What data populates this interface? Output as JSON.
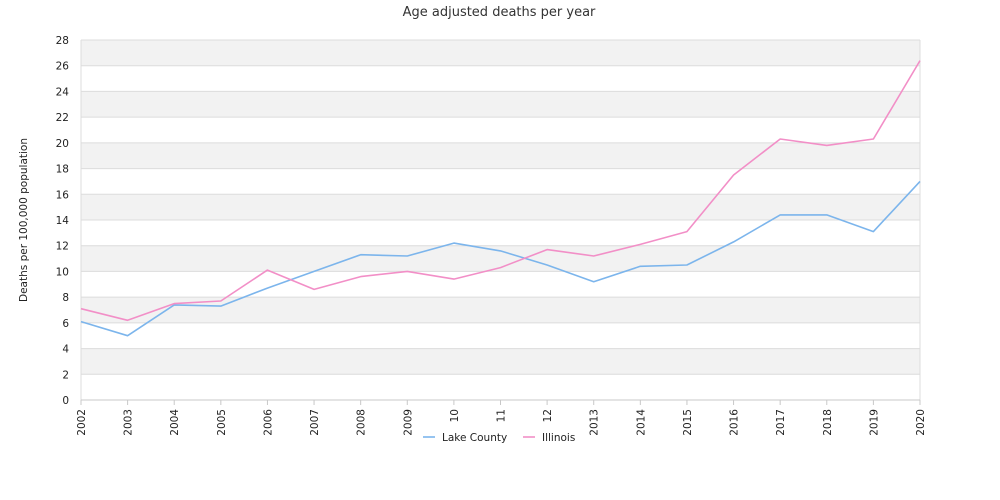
{
  "chart_data": {
    "type": "line",
    "title": "Age adjusted deaths per year",
    "xlabel": "",
    "ylabel": "Deaths per 100,000 population",
    "categories": [
      "2002",
      "2003",
      "2004",
      "2005",
      "2006",
      "2007",
      "2008",
      "2009",
      "10",
      "11",
      "12",
      "2013",
      "2014",
      "2015",
      "2016",
      "2017",
      "2018",
      "2019",
      "2020"
    ],
    "ylim": [
      0,
      28
    ],
    "yticks": [
      0,
      2,
      4,
      6,
      8,
      10,
      12,
      14,
      16,
      18,
      20,
      22,
      24,
      26,
      28
    ],
    "grid": "alternating horizontal bands",
    "legend_position": "bottom",
    "series": [
      {
        "name": "Lake County",
        "color": "#7cb5ec",
        "values": [
          6.1,
          5.0,
          7.4,
          7.3,
          8.7,
          10.0,
          11.3,
          11.2,
          12.2,
          11.6,
          10.5,
          9.2,
          10.4,
          10.5,
          12.3,
          14.4,
          14.4,
          13.1,
          17.0
        ]
      },
      {
        "name": "Illinois",
        "color": "#f28fc7",
        "values": [
          7.1,
          6.2,
          7.5,
          7.7,
          10.1,
          8.6,
          9.6,
          10.0,
          9.4,
          10.3,
          11.7,
          11.2,
          12.1,
          13.1,
          17.5,
          20.3,
          19.8,
          20.3,
          26.4
        ]
      }
    ]
  }
}
